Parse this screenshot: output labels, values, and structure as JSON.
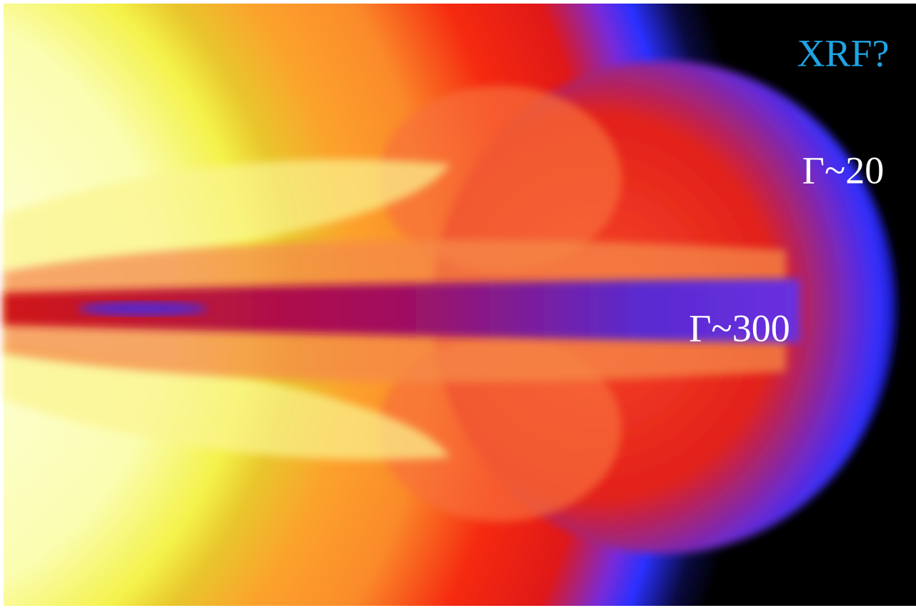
{
  "labels": {
    "xrf": "XRF?",
    "gamma_20": "Γ~20",
    "gamma_300": "Γ~300"
  }
}
